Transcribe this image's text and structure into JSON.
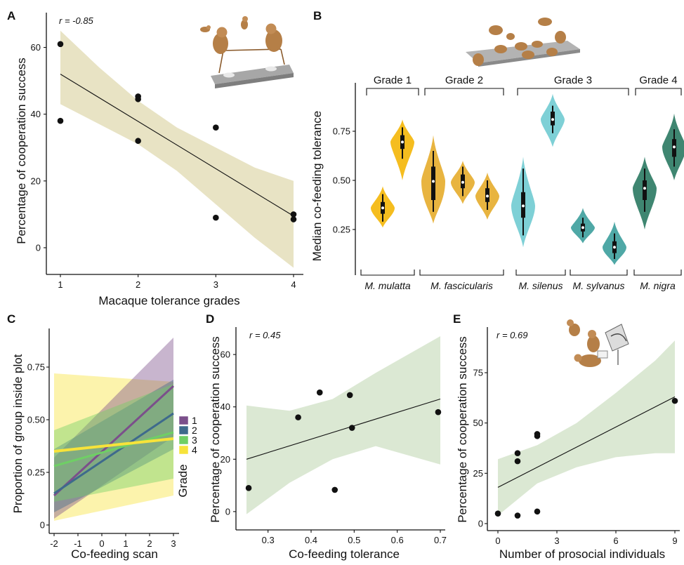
{
  "figure": {
    "panels": {
      "A": {
        "letter": "A",
        "r_label": "r = -0.85"
      },
      "B": {
        "letter": "B"
      },
      "C": {
        "letter": "C"
      },
      "D": {
        "letter": "D",
        "r_label": "r = 0.45"
      },
      "E": {
        "letter": "E",
        "r_label": "r = 0.69"
      }
    }
  },
  "chart_data": [
    {
      "id": "A",
      "type": "scatter",
      "title": "",
      "xlabel": "Macaque tolerance grades",
      "ylabel": "Percentage of cooperation success",
      "xlim": [
        1,
        4
      ],
      "ylim": [
        -8,
        66
      ],
      "xticks": [
        "1",
        "2",
        "3",
        "4"
      ],
      "yticks": [
        "0",
        "20",
        "40",
        "60"
      ],
      "points": [
        [
          1,
          61
        ],
        [
          1,
          38
        ],
        [
          2,
          45.3
        ],
        [
          2,
          44.5
        ],
        [
          2,
          32
        ],
        [
          3,
          36
        ],
        [
          3,
          9
        ],
        [
          4,
          10
        ],
        [
          4,
          8.5
        ]
      ],
      "fit": {
        "x": [
          1,
          4
        ],
        "y": [
          52,
          9.5
        ]
      },
      "ci_band": {
        "x": [
          1,
          1.5,
          2,
          2.5,
          3,
          3.5,
          4
        ],
        "upper": [
          65,
          54,
          44,
          36,
          30,
          24,
          20
        ],
        "lower": [
          43,
          37,
          31,
          23,
          13,
          3,
          -6
        ]
      },
      "annotation": "r = -0.85",
      "band_color": "#e8e3c4"
    },
    {
      "id": "B",
      "type": "violin",
      "ylabel": "Median co-feeding tolerance",
      "yticks": [
        "0.25",
        "0.50",
        "0.75"
      ],
      "ylim": [
        0.05,
        0.97
      ],
      "grades": [
        "Grade 1",
        "Grade 2",
        "Grade 3",
        "Grade 4"
      ],
      "species": [
        "M. mulatta",
        "M. fascicularis",
        "M. silenus",
        "M. sylvanus",
        "M. nigra"
      ],
      "groups": [
        {
          "grade": 1,
          "species": "M. mulatta",
          "median": 0.36,
          "q1": 0.33,
          "q3": 0.39,
          "min": 0.29,
          "max": 0.43,
          "lo": 0.26,
          "hi": 0.47,
          "color": "#f5bd1f"
        },
        {
          "grade": 1,
          "species": "M. mulatta",
          "median": 0.695,
          "q1": 0.66,
          "q3": 0.73,
          "min": 0.61,
          "max": 0.77,
          "lo": 0.5,
          "hi": 0.81,
          "color": "#f5bd1f"
        },
        {
          "grade": 2,
          "species": "M. fascicularis",
          "median": 0.495,
          "q1": 0.4,
          "q3": 0.57,
          "min": 0.34,
          "max": 0.65,
          "lo": 0.28,
          "hi": 0.73,
          "color": "#e8b440"
        },
        {
          "grade": 2,
          "species": "M. fascicularis",
          "median": 0.49,
          "q1": 0.46,
          "q3": 0.53,
          "min": 0.42,
          "max": 0.57,
          "lo": 0.38,
          "hi": 0.6,
          "color": "#e8b440"
        },
        {
          "grade": 2,
          "species": "M. fascicularis",
          "median": 0.42,
          "q1": 0.39,
          "q3": 0.46,
          "min": 0.35,
          "max": 0.5,
          "lo": 0.3,
          "hi": 0.54,
          "color": "#e8b440"
        },
        {
          "grade": 3,
          "species": "M. silenus",
          "median": 0.37,
          "q1": 0.31,
          "q3": 0.44,
          "min": 0.22,
          "max": 0.56,
          "lo": 0.16,
          "hi": 0.62,
          "color": "#7ed0d6"
        },
        {
          "grade": 3,
          "species": "M. silenus",
          "median": 0.81,
          "q1": 0.78,
          "q3": 0.85,
          "min": 0.74,
          "max": 0.88,
          "lo": 0.67,
          "hi": 0.94,
          "color": "#7ed0d6"
        },
        {
          "grade": 3,
          "species": "M. sylvanus",
          "median": 0.26,
          "q1": 0.24,
          "q3": 0.28,
          "min": 0.21,
          "max": 0.31,
          "lo": 0.18,
          "hi": 0.36,
          "color": "#4fa8a6"
        },
        {
          "grade": 3,
          "species": "M. sylvanus",
          "median": 0.16,
          "q1": 0.13,
          "q3": 0.19,
          "min": 0.1,
          "max": 0.23,
          "lo": 0.07,
          "hi": 0.29,
          "color": "#4fa8a6"
        },
        {
          "grade": 4,
          "species": "M. nigra",
          "median": 0.46,
          "q1": 0.4,
          "q3": 0.5,
          "min": 0.34,
          "max": 0.56,
          "lo": 0.25,
          "hi": 0.62,
          "color": "#3f8671"
        },
        {
          "grade": 4,
          "species": "M. nigra",
          "median": 0.67,
          "q1": 0.62,
          "q3": 0.71,
          "min": 0.57,
          "max": 0.76,
          "lo": 0.5,
          "hi": 0.84,
          "color": "#3f8671"
        }
      ]
    },
    {
      "id": "C",
      "type": "line",
      "xlabel": "Co-feeding scan",
      "ylabel": "Proportion of group inside plot",
      "xlim": [
        -2,
        3
      ],
      "ylim": [
        -0.05,
        0.9
      ],
      "xticks": [
        "-2",
        "-1",
        "0",
        "1",
        "2",
        "3"
      ],
      "yticks": [
        "0",
        "0.25",
        "0.50",
        "0.75"
      ],
      "legend": {
        "title": "Grade",
        "entries": [
          "1",
          "2",
          "3",
          "4"
        ],
        "position": "right"
      },
      "series": [
        {
          "name": "1",
          "color": "#7b4f8b",
          "x": [
            -2,
            3
          ],
          "y": [
            0.14,
            0.66
          ],
          "ci_lower": [
            0.03,
            0.42
          ],
          "ci_upper": [
            0.32,
            0.89
          ]
        },
        {
          "name": "2",
          "color": "#3e6a8c",
          "x": [
            -2,
            3
          ],
          "y": [
            0.15,
            0.53
          ],
          "ci_lower": [
            0.06,
            0.36
          ],
          "ci_upper": [
            0.36,
            0.69
          ]
        },
        {
          "name": "3",
          "color": "#6fcf65",
          "x": [
            -2,
            3
          ],
          "y": [
            0.28,
            0.44
          ],
          "ci_lower": [
            0.11,
            0.22
          ],
          "ci_upper": [
            0.45,
            0.67
          ]
        },
        {
          "name": "4",
          "color": "#f7e33a",
          "x": [
            -2,
            3
          ],
          "y": [
            0.35,
            0.41
          ],
          "ci_lower": [
            0.02,
            0.14
          ],
          "ci_upper": [
            0.72,
            0.68
          ]
        }
      ]
    },
    {
      "id": "D",
      "type": "scatter",
      "xlabel": "Co-feeding tolerance",
      "ylabel": "Percentage of cooperation success",
      "xlim": [
        0.25,
        0.7
      ],
      "ylim": [
        -7,
        67
      ],
      "xticks": [
        "0.3",
        "0.4",
        "0.5",
        "0.6",
        "0.7"
      ],
      "yticks": [
        "0",
        "20",
        "40",
        "60"
      ],
      "points": [
        [
          0.255,
          9
        ],
        [
          0.37,
          36
        ],
        [
          0.42,
          45.5
        ],
        [
          0.455,
          8.3
        ],
        [
          0.49,
          44.5
        ],
        [
          0.495,
          32
        ],
        [
          0.695,
          38
        ]
      ],
      "fit": {
        "x": [
          0.25,
          0.7
        ],
        "y": [
          20,
          43
        ]
      },
      "ci_band": {
        "x": [
          0.25,
          0.35,
          0.45,
          0.55,
          0.7
        ],
        "upper": [
          40.5,
          38.5,
          43,
          53,
          67
        ],
        "lower": [
          -1,
          11,
          20,
          25,
          18
        ]
      },
      "annotation": "r = 0.45",
      "band_color": "#dbe8d3"
    },
    {
      "id": "E",
      "type": "scatter",
      "xlabel": "Number of prosocial individuals",
      "ylabel": "Percentage of cooperation success",
      "xlim": [
        -0.3,
        9.3
      ],
      "ylim": [
        -3,
        92
      ],
      "xticks": [
        "0",
        "3",
        "6",
        "9"
      ],
      "yticks": [
        "0",
        "25",
        "50",
        "75"
      ],
      "points": [
        [
          0,
          5
        ],
        [
          1,
          4
        ],
        [
          1,
          31
        ],
        [
          1,
          35
        ],
        [
          2,
          44.5
        ],
        [
          2,
          43.5
        ],
        [
          2,
          6
        ],
        [
          9,
          61
        ]
      ],
      "fit": {
        "x": [
          0,
          9
        ],
        "y": [
          18,
          63
        ]
      },
      "ci_band": {
        "x": [
          0,
          2,
          4,
          6,
          8,
          9
        ],
        "upper": [
          32,
          39,
          50,
          65,
          81,
          91
        ],
        "lower": [
          4,
          20,
          28,
          33,
          35,
          35
        ]
      },
      "annotation": "r = 0.69",
      "band_color": "#dbe8d3"
    }
  ]
}
